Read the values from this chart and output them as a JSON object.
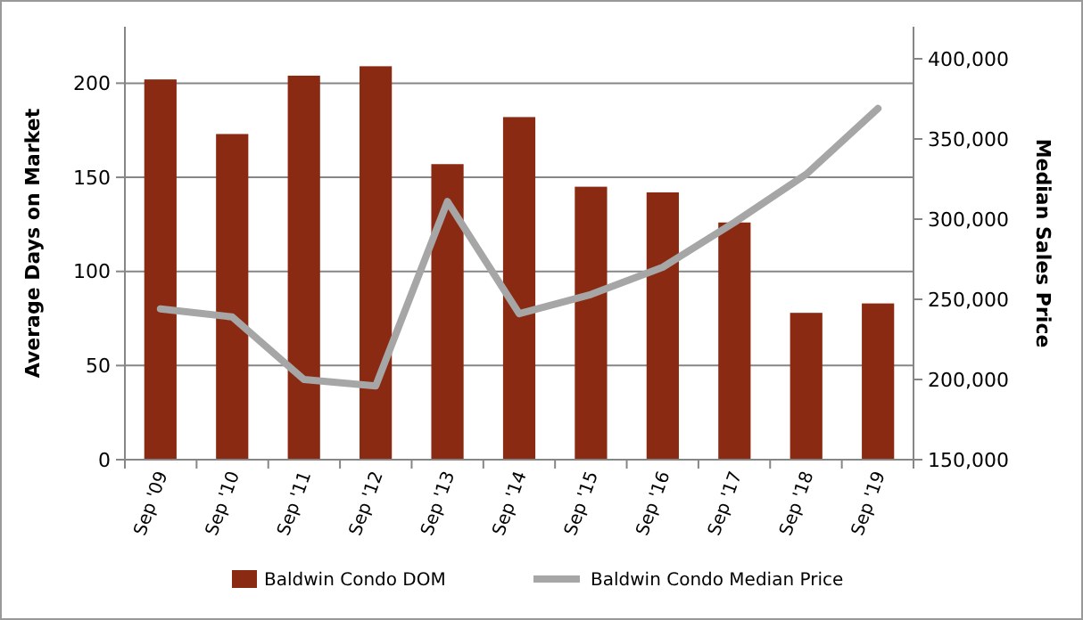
{
  "chart_data": {
    "type": "bar",
    "ylabel": "Average Days on Market",
    "y2label": "Median Sales Price",
    "categories": [
      "Sep '09",
      "Sep '10",
      "Sep '11",
      "Sep '12",
      "Sep '13",
      "Sep '14",
      "Sep '15",
      "Sep '16",
      "Sep '17",
      "Sep '18",
      "Sep '19"
    ],
    "series": [
      {
        "name": "Baldwin Condo DOM",
        "color": "#8b2a12",
        "values": [
          202,
          173,
          204,
          209,
          157,
          182,
          145,
          142,
          126,
          78,
          83
        ]
      },
      {
        "name": "Baldwin Condo Median Price",
        "type": "line",
        "axis": "y2",
        "color": "#a6a6a6",
        "values": [
          244000,
          239000,
          200000,
          196000,
          311000,
          241000,
          253000,
          270000,
          298000,
          328000,
          369000
        ]
      }
    ],
    "ylim": [
      0,
      230
    ],
    "yticks": [
      0,
      50,
      100,
      150,
      200
    ],
    "y2lim": [
      150000,
      420000
    ],
    "y2ticks": [
      {
        "value": 150000,
        "label": "150,000"
      },
      {
        "value": 200000,
        "label": "200,000"
      },
      {
        "value": 250000,
        "label": "250,000"
      },
      {
        "value": 300000,
        "label": "300,000"
      },
      {
        "value": 350000,
        "label": "350,000"
      },
      {
        "value": 400000,
        "label": "400,000"
      }
    ],
    "grid": "y",
    "legend": "bottom",
    "marker": "none",
    "line_style": "solid"
  }
}
